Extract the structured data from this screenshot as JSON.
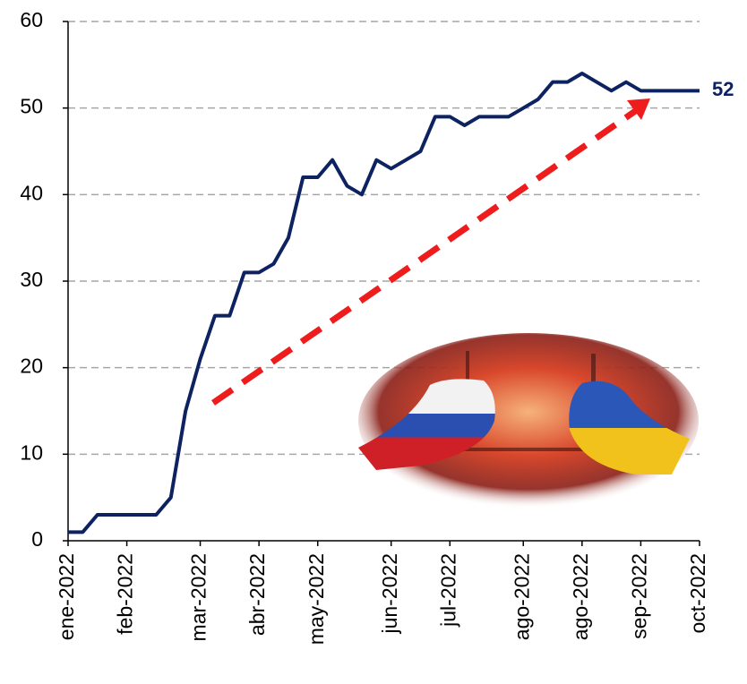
{
  "chart_data": {
    "type": "line",
    "categories": [
      "ene-2022",
      null,
      null,
      null,
      "feb-2022",
      null,
      null,
      null,
      null,
      "mar-2022",
      null,
      null,
      null,
      "abr-2022",
      null,
      null,
      null,
      "may-2022",
      null,
      null,
      null,
      null,
      "jun-2022",
      null,
      null,
      null,
      "jul-2022",
      null,
      null,
      null,
      null,
      "ago-2022",
      null,
      null,
      null,
      "ago-2022",
      null,
      null,
      null,
      "sep-2022",
      null,
      null,
      null,
      "oct-2022"
    ],
    "values": [
      1,
      1,
      3,
      3,
      3,
      3,
      3,
      5,
      15,
      21,
      26,
      26,
      31,
      31,
      32,
      35,
      42,
      42,
      44,
      41,
      40,
      44,
      43,
      44,
      45,
      49,
      49,
      48,
      49,
      49,
      49,
      50,
      51,
      53,
      53,
      54,
      53,
      52,
      53,
      52,
      52,
      52,
      52,
      52
    ],
    "color": "#0d2261",
    "ylim": [
      0,
      60
    ],
    "yticks": [
      0,
      10,
      20,
      30,
      40,
      50,
      60
    ],
    "grid": true
  }
}
